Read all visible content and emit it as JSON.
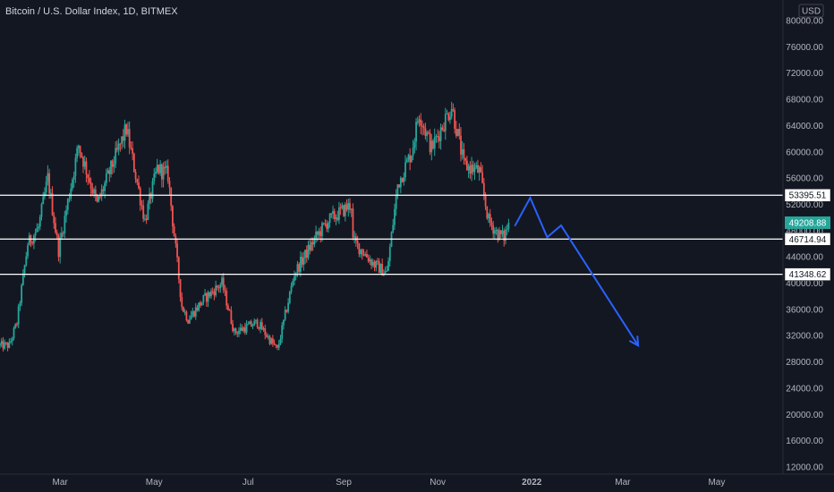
{
  "header": {
    "title": "Bitcoin / U.S. Dollar Index, 1D, BITMEX"
  },
  "currency_label": "USD",
  "colors": {
    "background": "#131722",
    "up": "#26a69a",
    "down": "#ef5350",
    "level_line": "#ffffff",
    "projection": "#2962ff",
    "last_price_badge": "#26a69a",
    "axis_text": "#b2b5be",
    "axis_border": "#2a2e39"
  },
  "chart_data": {
    "type": "candlestick",
    "title": "Bitcoin / U.S. Dollar Index, 1D, BITMEX",
    "ylim": [
      12000,
      80000
    ],
    "y_ticks": [
      80000,
      76000,
      72000,
      68000,
      64000,
      60000,
      56000,
      52000,
      48000,
      44000,
      40000,
      36000,
      32000,
      28000,
      24000,
      20000,
      16000,
      12000
    ],
    "y_tick_labels": [
      "80000.00",
      "76000.00",
      "72000.00",
      "68000.00",
      "64000.00",
      "60000.00",
      "56000.00",
      "52000.00",
      "48000.00",
      "44000.00",
      "40000.00",
      "36000.00",
      "32000.00",
      "28000.00",
      "24000.00",
      "20000.00",
      "16000.00",
      "12000.00"
    ],
    "x_ticks": [
      {
        "label": "Mar",
        "date": "2021-03-01"
      },
      {
        "label": "May",
        "date": "2021-05-01"
      },
      {
        "label": "Jul",
        "date": "2021-07-01"
      },
      {
        "label": "Sep",
        "date": "2021-09-01"
      },
      {
        "label": "Nov",
        "date": "2021-11-01"
      },
      {
        "label": "2022",
        "date": "2022-01-01"
      },
      {
        "label": "Mar",
        "date": "2022-03-01"
      },
      {
        "label": "May",
        "date": "2022-05-01"
      }
    ],
    "x_range": [
      "2021-01-21",
      "2022-06-13"
    ],
    "price_path": [
      [
        "2021-01-21",
        30500
      ],
      [
        "2021-01-27",
        30500
      ],
      [
        "2021-02-01",
        34000
      ],
      [
        "2021-02-08",
        46000
      ],
      [
        "2021-02-15",
        48500
      ],
      [
        "2021-02-21",
        56000
      ],
      [
        "2021-02-28",
        45000
      ],
      [
        "2021-03-13",
        61000
      ],
      [
        "2021-03-25",
        52000
      ],
      [
        "2021-04-13",
        63500
      ],
      [
        "2021-04-25",
        49500
      ],
      [
        "2021-05-03",
        57500
      ],
      [
        "2021-05-10",
        56500
      ],
      [
        "2021-05-13",
        49500
      ],
      [
        "2021-05-19",
        36500
      ],
      [
        "2021-05-23",
        34500
      ],
      [
        "2021-06-02",
        37500
      ],
      [
        "2021-06-14",
        40000
      ],
      [
        "2021-06-22",
        32500
      ],
      [
        "2021-07-07",
        34000
      ],
      [
        "2021-07-20",
        29800
      ],
      [
        "2021-07-31",
        41500
      ],
      [
        "2021-08-14",
        47000
      ],
      [
        "2021-08-22",
        49500
      ],
      [
        "2021-09-06",
        52000
      ],
      [
        "2021-09-07",
        46500
      ],
      [
        "2021-09-21",
        42800
      ],
      [
        "2021-09-29",
        41500
      ],
      [
        "2021-10-06",
        55000
      ],
      [
        "2021-10-15",
        60000
      ],
      [
        "2021-10-20",
        66000
      ],
      [
        "2021-10-28",
        60500
      ],
      [
        "2021-11-10",
        67000
      ],
      [
        "2021-11-18",
        58000
      ],
      [
        "2021-11-28",
        57000
      ],
      [
        "2021-12-04",
        49500
      ],
      [
        "2021-12-10",
        47500
      ],
      [
        "2021-12-14",
        47000
      ],
      [
        "2021-12-17",
        49208.88
      ]
    ],
    "current_price": 49208.88,
    "current_price_label": "49208.88",
    "levels": [
      {
        "value": 53395.51,
        "label": "53395.51"
      },
      {
        "value": 46714.94,
        "label": "46714.94"
      },
      {
        "value": 41348.62,
        "label": "41348.62"
      }
    ],
    "projection": {
      "points": [
        [
          "2021-12-21",
          48700
        ],
        [
          "2021-12-31",
          53000
        ],
        [
          "2022-01-11",
          47000
        ],
        [
          "2022-01-20",
          48800
        ],
        [
          "2022-03-11",
          30500
        ]
      ]
    },
    "grid": false
  }
}
